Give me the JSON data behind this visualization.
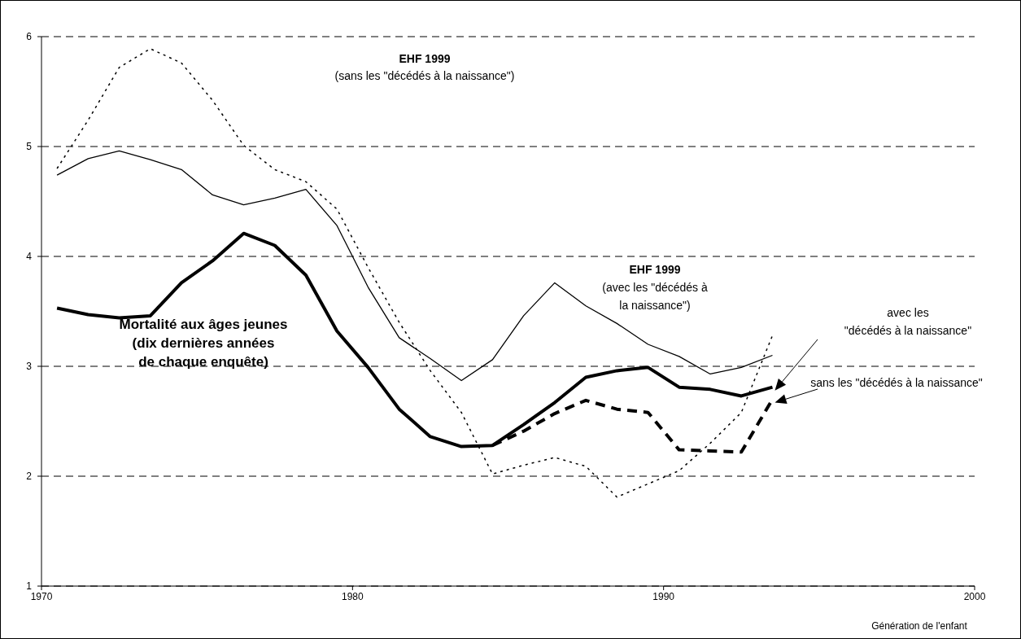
{
  "chart_data": {
    "type": "line",
    "xlabel": "Génération de l'enfant",
    "xlim": [
      1970,
      2000
    ],
    "xticks": [
      1970,
      1980,
      1990,
      2000
    ],
    "ylim": [
      1,
      6
    ],
    "yticks": [
      1,
      2,
      3,
      4,
      5,
      6
    ],
    "grid": "y",
    "marker": "none",
    "x": [
      1970.5,
      1971.5,
      1972.5,
      1973.5,
      1974.5,
      1975.5,
      1976.5,
      1977.5,
      1978.5,
      1979.5,
      1980.5,
      1981.5,
      1982.5,
      1983.5,
      1984.5,
      1985.5,
      1986.5,
      1987.5,
      1988.5,
      1989.5,
      1990.5,
      1991.5,
      1992.5,
      1993.5
    ],
    "series": [
      {
        "color": "#000000",
        "line_style": "solid",
        "values": [
          4.74,
          4.89,
          4.96,
          4.88,
          4.79,
          4.56,
          4.47,
          4.53,
          4.61,
          4.28,
          3.72,
          3.26,
          3.07,
          2.87,
          3.06,
          3.46,
          3.76,
          3.55,
          3.39,
          3.2,
          3.09,
          2.93,
          2.99,
          3.1
        ]
      },
      {
        "color": "#000000",
        "line_style": "dotted",
        "values": [
          4.8,
          5.24,
          5.72,
          5.89,
          5.76,
          5.42,
          5.01,
          4.79,
          4.68,
          4.43,
          3.9,
          3.4,
          2.96,
          2.58,
          2.02,
          2.1,
          2.17,
          2.09,
          1.81,
          1.93,
          2.05,
          2.3,
          2.58,
          3.28
        ]
      },
      {
        "color": "#000000",
        "line_style": "solid",
        "values": [
          3.53,
          3.47,
          3.44,
          3.46,
          3.76,
          3.96,
          4.21,
          4.1,
          3.83,
          3.32,
          2.99,
          2.61,
          2.36,
          2.27,
          2.28,
          2.47,
          2.67,
          2.9,
          2.96,
          2.99,
          2.81,
          2.79,
          2.73,
          2.81
        ]
      },
      {
        "color": "#000000",
        "line_style": "dashed",
        "values": [
          null,
          null,
          null,
          null,
          null,
          null,
          null,
          null,
          null,
          null,
          null,
          null,
          null,
          null,
          2.28,
          2.41,
          2.57,
          2.69,
          2.61,
          2.58,
          2.24,
          2.23,
          2.22,
          2.7
        ]
      }
    ],
    "annotations": [
      "EHF 1999\n(sans les \"décédés à la naissance\")",
      "Mortalité aux âges jeunes\n(dix dernières années\nde chaque enquête)",
      "EHF 1999\n(avec les \"décédés à\nla naissance\")",
      "avec les\n\"décédés à la naissance\"",
      "sans les \"décédés à la naissance\""
    ]
  }
}
